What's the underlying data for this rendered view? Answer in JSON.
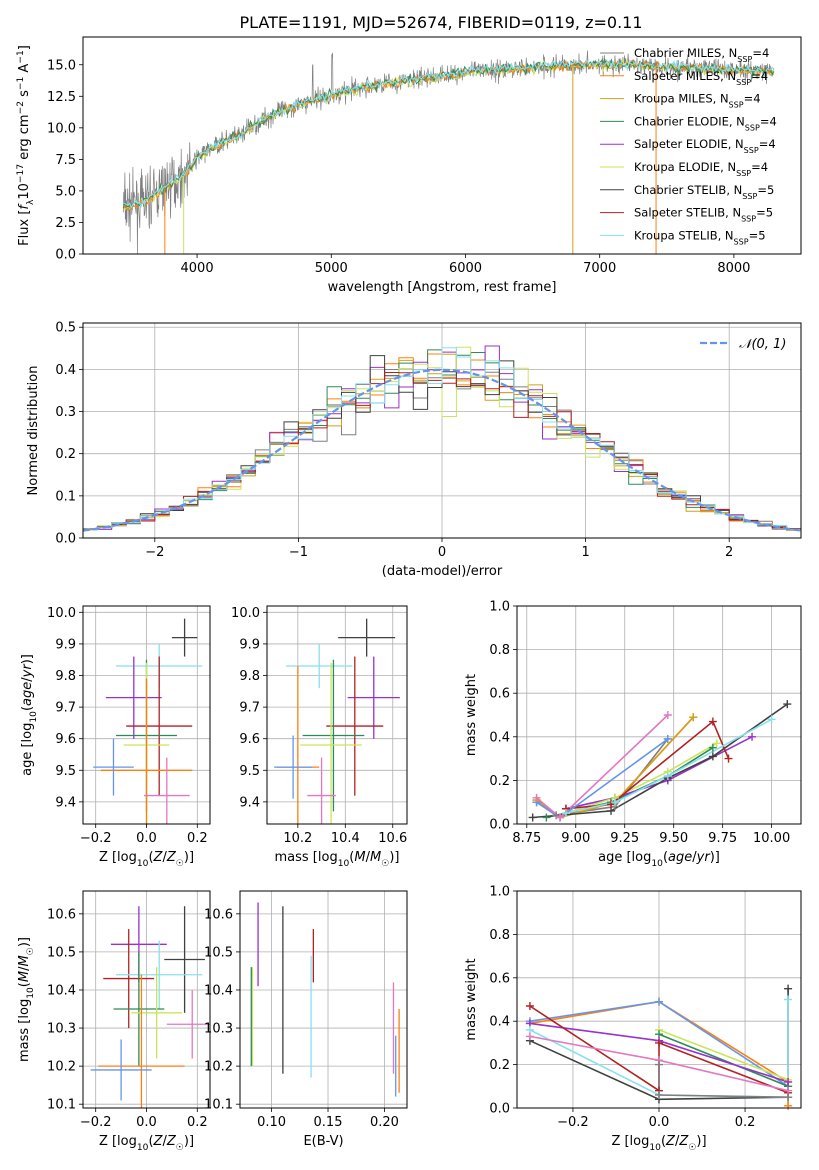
{
  "figure": {
    "title": "PLATE=1191, MJD=52674, FIBERID=0119, z=0.11"
  },
  "colors": [
    "#7f7f7f",
    "#ff7f0e",
    "#d4a017",
    "#2e8b57",
    "#9932cc",
    "#c8e65a",
    "#404040",
    "#b22222",
    "#87e0f0"
  ],
  "extra_colors": {
    "blue": "#6495ed",
    "pink": "#e377c2"
  },
  "chart_data": [
    {
      "id": "spectrum",
      "type": "line",
      "xlabel": "wavelength [Angstrom, rest frame]",
      "ylabel": "Flux [f_λ 10^{-17} erg cm^{-2} s^{-1} A^{-1}]",
      "xlim": [
        3150,
        8500
      ],
      "ylim": [
        0,
        17.2
      ],
      "xticks": [
        4000,
        5000,
        6000,
        7000,
        8000
      ],
      "yticks": [
        0.0,
        2.5,
        5.0,
        7.5,
        10.0,
        12.5,
        15.0
      ],
      "grid": false,
      "legend_position": "right",
      "legend": [
        {
          "label": "Chabrier MILES, N",
          "sub": "SSP",
          "val": "=4",
          "color": "#7f7f7f"
        },
        {
          "label": "Salpeter MILES, N",
          "sub": "SSP",
          "val": "=4",
          "color": "#ff7f0e"
        },
        {
          "label": "Kroupa MILES, N",
          "sub": "SSP",
          "val": "=4",
          "color": "#d4a017"
        },
        {
          "label": "Chabrier ELODIE, N",
          "sub": "SSP",
          "val": "=4",
          "color": "#2e8b57"
        },
        {
          "label": "Salpeter ELODIE, N",
          "sub": "SSP",
          "val": "=4",
          "color": "#9932cc"
        },
        {
          "label": "Kroupa ELODIE, N",
          "sub": "SSP",
          "val": "=4",
          "color": "#c8e65a"
        },
        {
          "label": "Chabrier STELIB, N",
          "sub": "SSP",
          "val": "=5",
          "color": "#404040"
        },
        {
          "label": "Salpeter STELIB, N",
          "sub": "SSP",
          "val": "=5",
          "color": "#b22222"
        },
        {
          "label": "Kroupa STELIB, N",
          "sub": "SSP",
          "val": "=5",
          "color": "#87e0f0"
        }
      ],
      "continuum": [
        [
          3450,
          3.8
        ],
        [
          3600,
          4.0
        ],
        [
          3700,
          4.8
        ],
        [
          3800,
          5.6
        ],
        [
          3900,
          6.2
        ],
        [
          4000,
          7.6
        ],
        [
          4100,
          8.4
        ],
        [
          4200,
          8.9
        ],
        [
          4300,
          9.3
        ],
        [
          4400,
          10.0
        ],
        [
          4500,
          10.7
        ],
        [
          4600,
          11.2
        ],
        [
          4700,
          11.6
        ],
        [
          4800,
          12.0
        ],
        [
          4900,
          12.3
        ],
        [
          5000,
          12.6
        ],
        [
          5200,
          13.1
        ],
        [
          5400,
          13.5
        ],
        [
          5600,
          13.8
        ],
        [
          5800,
          14.1
        ],
        [
          6000,
          14.4
        ],
        [
          6200,
          14.6
        ],
        [
          6400,
          14.7
        ],
        [
          6600,
          14.9
        ],
        [
          6800,
          15.0
        ],
        [
          7000,
          15.0
        ],
        [
          7200,
          15.0
        ],
        [
          7400,
          14.9
        ],
        [
          7600,
          14.8
        ],
        [
          7800,
          14.7
        ],
        [
          8000,
          14.6
        ],
        [
          8200,
          14.5
        ],
        [
          8300,
          14.4
        ]
      ]
    },
    {
      "id": "residuals",
      "type": "histogram",
      "xlabel": "(data-model)/error",
      "ylabel": "Normed distribution",
      "xlim": [
        -2.5,
        2.5
      ],
      "ylim": [
        0,
        0.51
      ],
      "xticks": [
        -2,
        -1,
        0,
        1,
        2
      ],
      "yticks": [
        0.0,
        0.1,
        0.2,
        0.3,
        0.4,
        0.5
      ],
      "grid": true,
      "legend_position": "top-right",
      "legend": [
        {
          "label": "𝒩(0, 1)",
          "color": "#6495ed"
        }
      ],
      "bin_width": 0.1
    },
    {
      "id": "age_vs_Z",
      "type": "errorbar",
      "xlabel": "Z [log10(Z/Z☉)]",
      "ylabel": "age [log10(age/yr)]",
      "xlim": [
        -0.25,
        0.25
      ],
      "ylim": [
        9.33,
        10.02
      ],
      "xticks": [
        -0.2,
        0.0,
        0.2
      ],
      "yticks": [
        9.4,
        9.5,
        9.6,
        9.7,
        9.8,
        9.9,
        10.0
      ],
      "grid": true,
      "points": [
        {
          "x": 0.15,
          "xerr": 0.05,
          "y": 9.92,
          "yerr": 0.06,
          "color": "#404040"
        },
        {
          "x": 0.05,
          "xerr": 0.17,
          "y": 9.83,
          "yerr": 0.07,
          "color": "#87e0f0"
        },
        {
          "x": -0.05,
          "xerr": 0.11,
          "y": 9.73,
          "yerr": 0.13,
          "color": "#9932cc"
        },
        {
          "x": 0.05,
          "xerr": 0.13,
          "y": 9.64,
          "yerr": 0.22,
          "color": "#b22222"
        },
        {
          "x": 0.0,
          "xerr": 0.12,
          "y": 9.61,
          "yerr": 0.24,
          "color": "#2e8b57"
        },
        {
          "x": 0.0,
          "xerr": 0.09,
          "y": 9.58,
          "yerr": 0.26,
          "color": "#c8e65a"
        },
        {
          "x": 0.0,
          "xerr": 0.18,
          "y": 9.5,
          "yerr": 0.29,
          "color": "#ff7f0e"
        },
        {
          "x": -0.13,
          "xerr": 0.08,
          "y": 9.51,
          "yerr": 0.09,
          "color": "#6495ed"
        },
        {
          "x": 0.08,
          "xerr": 0.09,
          "y": 9.42,
          "yerr": 0.12,
          "color": "#e377c2"
        }
      ]
    },
    {
      "id": "age_vs_mass",
      "type": "errorbar",
      "xlabel": "mass [log10(M/M☉)]",
      "ylabel": "",
      "xlim": [
        10.07,
        10.66
      ],
      "ylim": [
        9.33,
        10.02
      ],
      "xticks": [
        10.2,
        10.4,
        10.6
      ],
      "yticks": [
        9.4,
        9.5,
        9.6,
        9.7,
        9.8,
        9.9,
        10.0
      ],
      "grid": true,
      "points": [
        {
          "x": 10.49,
          "xerr": 0.12,
          "y": 9.92,
          "yerr": 0.06,
          "color": "#404040"
        },
        {
          "x": 10.29,
          "xerr": 0.14,
          "y": 9.83,
          "yerr": 0.07,
          "color": "#87e0f0"
        },
        {
          "x": 10.52,
          "xerr": 0.11,
          "y": 9.73,
          "yerr": 0.13,
          "color": "#9932cc"
        },
        {
          "x": 10.44,
          "xerr": 0.12,
          "y": 9.64,
          "yerr": 0.22,
          "color": "#b22222"
        },
        {
          "x": 10.35,
          "xerr": 0.13,
          "y": 9.61,
          "yerr": 0.24,
          "color": "#2e8b57"
        },
        {
          "x": 10.34,
          "xerr": 0.13,
          "y": 9.58,
          "yerr": 0.26,
          "color": "#c8e65a"
        },
        {
          "x": 10.2,
          "xerr": 0.09,
          "y": 9.51,
          "yerr": 0.32,
          "color": "#ff7f0e"
        },
        {
          "x": 10.18,
          "xerr": 0.08,
          "y": 9.51,
          "yerr": 0.1,
          "color": "#6495ed"
        },
        {
          "x": 10.3,
          "xerr": 0.06,
          "y": 9.42,
          "yerr": 0.12,
          "color": "#e377c2"
        }
      ]
    },
    {
      "id": "mass_weight_vs_age",
      "type": "line",
      "xlabel": "age [log10(age/yr)]",
      "ylabel": "mass weight",
      "xlim": [
        8.7,
        10.15
      ],
      "ylim": [
        0,
        1.0
      ],
      "xticks": [
        8.75,
        9.0,
        9.25,
        9.5,
        9.75,
        10.0
      ],
      "yticks": [
        0.0,
        0.2,
        0.4,
        0.6,
        0.8,
        1.0
      ],
      "grid": true,
      "series": [
        {
          "color": "#7f7f7f",
          "x": [
            8.8,
            8.9,
            9.2,
            9.47
          ],
          "y": [
            0.1,
            0.04,
            0.08,
            0.39
          ]
        },
        {
          "color": "#ff7f0e",
          "x": [
            8.8,
            8.92,
            9.2,
            9.6
          ],
          "y": [
            0.11,
            0.03,
            0.1,
            0.49
          ]
        },
        {
          "color": "#d4a017",
          "x": [
            8.8,
            8.92,
            9.2,
            9.6
          ],
          "y": [
            0.11,
            0.03,
            0.1,
            0.49
          ]
        },
        {
          "color": "#2e8b57",
          "x": [
            8.85,
            9.18,
            9.47,
            9.7
          ],
          "y": [
            0.03,
            0.1,
            0.22,
            0.35
          ]
        },
        {
          "color": "#9932cc",
          "x": [
            8.95,
            9.2,
            9.47,
            9.9
          ],
          "y": [
            0.07,
            0.12,
            0.2,
            0.4
          ]
        },
        {
          "color": "#c8e65a",
          "x": [
            8.95,
            9.2,
            9.47,
            9.72
          ],
          "y": [
            0.05,
            0.12,
            0.24,
            0.37
          ]
        },
        {
          "color": "#404040",
          "x": [
            8.78,
            9.18,
            9.47,
            9.7,
            10.08
          ],
          "y": [
            0.03,
            0.06,
            0.21,
            0.31,
            0.55
          ]
        },
        {
          "color": "#b22222",
          "x": [
            8.95,
            9.18,
            9.7,
            9.78
          ],
          "y": [
            0.07,
            0.09,
            0.47,
            0.3
          ]
        },
        {
          "color": "#87e0f0",
          "x": [
            8.95,
            9.2,
            9.47,
            10.0
          ],
          "y": [
            0.05,
            0.1,
            0.22,
            0.48
          ]
        },
        {
          "color": "#6495ed",
          "x": [
            8.8,
            8.92,
            9.47
          ],
          "y": [
            0.1,
            0.03,
            0.39
          ]
        },
        {
          "color": "#e377c2",
          "x": [
            8.8,
            8.92,
            9.47
          ],
          "y": [
            0.12,
            0.03,
            0.5
          ]
        }
      ]
    },
    {
      "id": "mass_vs_Z",
      "type": "errorbar",
      "xlabel": "Z [log10(Z/Z☉)]",
      "ylabel": "mass [log10(M/M☉)]",
      "xlim": [
        -0.25,
        0.25
      ],
      "ylim": [
        10.09,
        10.66
      ],
      "xticks": [
        -0.2,
        0.0,
        0.2
      ],
      "yticks": [
        10.1,
        10.2,
        10.3,
        10.4,
        10.5,
        10.6
      ],
      "grid": true,
      "points": [
        {
          "x": -0.03,
          "xerr": 0.11,
          "y": 10.52,
          "yerr": 0.1,
          "color": "#9932cc"
        },
        {
          "x": 0.15,
          "xerr": 0.08,
          "y": 10.48,
          "yerr": 0.14,
          "color": "#404040"
        },
        {
          "x": -0.07,
          "xerr": 0.1,
          "y": 10.43,
          "yerr": 0.13,
          "color": "#b22222"
        },
        {
          "x": 0.05,
          "xerr": 0.17,
          "y": 10.44,
          "yerr": 0.09,
          "color": "#87e0f0"
        },
        {
          "x": -0.03,
          "xerr": 0.1,
          "y": 10.35,
          "yerr": 0.15,
          "color": "#2e8b57"
        },
        {
          "x": 0.04,
          "xerr": 0.1,
          "y": 10.34,
          "yerr": 0.12,
          "color": "#c8e65a"
        },
        {
          "x": 0.18,
          "xerr": 0.1,
          "y": 10.31,
          "yerr": 0.09,
          "color": "#e377c2"
        },
        {
          "x": -0.02,
          "xerr": 0.17,
          "y": 10.2,
          "yerr": 0.24,
          "color": "#ff7f0e"
        },
        {
          "x": -0.1,
          "xerr": 0.12,
          "y": 10.19,
          "yerr": 0.08,
          "color": "#6495ed"
        }
      ]
    },
    {
      "id": "mass_vs_ebv",
      "type": "errorbar",
      "xlabel": "E(B-V)",
      "ylabel": "",
      "xlim": [
        0.072,
        0.22
      ],
      "ylim": [
        10.09,
        10.66
      ],
      "xticks": [
        0.1,
        0.15,
        0.2
      ],
      "yticks": [
        10.1,
        10.2,
        10.3,
        10.4,
        10.5,
        10.6
      ],
      "grid": true,
      "points": [
        {
          "x": 0.088,
          "y": 10.52,
          "yerr": 0.11,
          "color": "#9932cc"
        },
        {
          "x": 0.083,
          "y": 10.33,
          "yerr": 0.13,
          "color": "#c8e65a"
        },
        {
          "x": 0.082,
          "y": 10.33,
          "yerr": 0.13,
          "color": "#2e8b57"
        },
        {
          "x": 0.11,
          "y": 10.4,
          "yerr": 0.22,
          "color": "#404040"
        },
        {
          "x": 0.135,
          "y": 10.33,
          "yerr": 0.16,
          "color": "#87e0f0"
        },
        {
          "x": 0.137,
          "y": 10.49,
          "yerr": 0.07,
          "color": "#b22222"
        },
        {
          "x": 0.208,
          "y": 10.3,
          "yerr": 0.12,
          "color": "#e377c2"
        },
        {
          "x": 0.21,
          "y": 10.2,
          "yerr": 0.08,
          "color": "#6495ed"
        },
        {
          "x": 0.213,
          "y": 10.24,
          "yerr": 0.11,
          "color": "#ff7f0e"
        }
      ]
    },
    {
      "id": "mass_weight_vs_Z",
      "type": "line",
      "xlabel": "Z [log10(Z/Z☉)]",
      "ylabel": "mass weight",
      "xlim": [
        -0.33,
        0.33
      ],
      "ylim": [
        0,
        1.0
      ],
      "xticks": [
        -0.2,
        0.0,
        0.2
      ],
      "yticks": [
        0.0,
        0.2,
        0.4,
        0.6,
        0.8,
        1.0
      ],
      "grid": true,
      "series": [
        {
          "color": "#ff7f0e",
          "x": [
            -0.3,
            0.0,
            0.3,
            0.3
          ],
          "y": [
            0.39,
            0.49,
            0.12,
            0.01
          ]
        },
        {
          "color": "#6495ed",
          "x": [
            -0.3,
            0.0,
            0.3
          ],
          "y": [
            0.4,
            0.49,
            0.1
          ]
        },
        {
          "color": "#c8e65a",
          "x": [
            0.0,
            0.3
          ],
          "y": [
            0.36,
            0.13
          ]
        },
        {
          "color": "#2e8b57",
          "x": [
            0.0,
            0.3
          ],
          "y": [
            0.34,
            0.1
          ]
        },
        {
          "color": "#9932cc",
          "x": [
            -0.3,
            0.0,
            0.3
          ],
          "y": [
            0.39,
            0.31,
            0.12
          ]
        },
        {
          "color": "#404040",
          "x": [
            -0.3,
            0.0,
            0.3,
            0.3
          ],
          "y": [
            0.31,
            0.04,
            0.05,
            0.55
          ]
        },
        {
          "color": "#b22222",
          "x": [
            -0.3,
            0.0,
            0.0,
            0.3
          ],
          "y": [
            0.47,
            0.08,
            0.3,
            0.07
          ]
        },
        {
          "color": "#87e0f0",
          "x": [
            -0.3,
            0.0,
            0.3,
            0.3
          ],
          "y": [
            0.36,
            0.06,
            0.05,
            0.5
          ]
        },
        {
          "color": "#e377c2",
          "x": [
            -0.3,
            0.0,
            0.3
          ],
          "y": [
            0.33,
            0.22,
            0.08
          ]
        },
        {
          "color": "#7f7f7f",
          "x": [
            0.0,
            0.0,
            0.3
          ],
          "y": [
            0.2,
            0.06,
            0.05
          ]
        }
      ]
    }
  ]
}
